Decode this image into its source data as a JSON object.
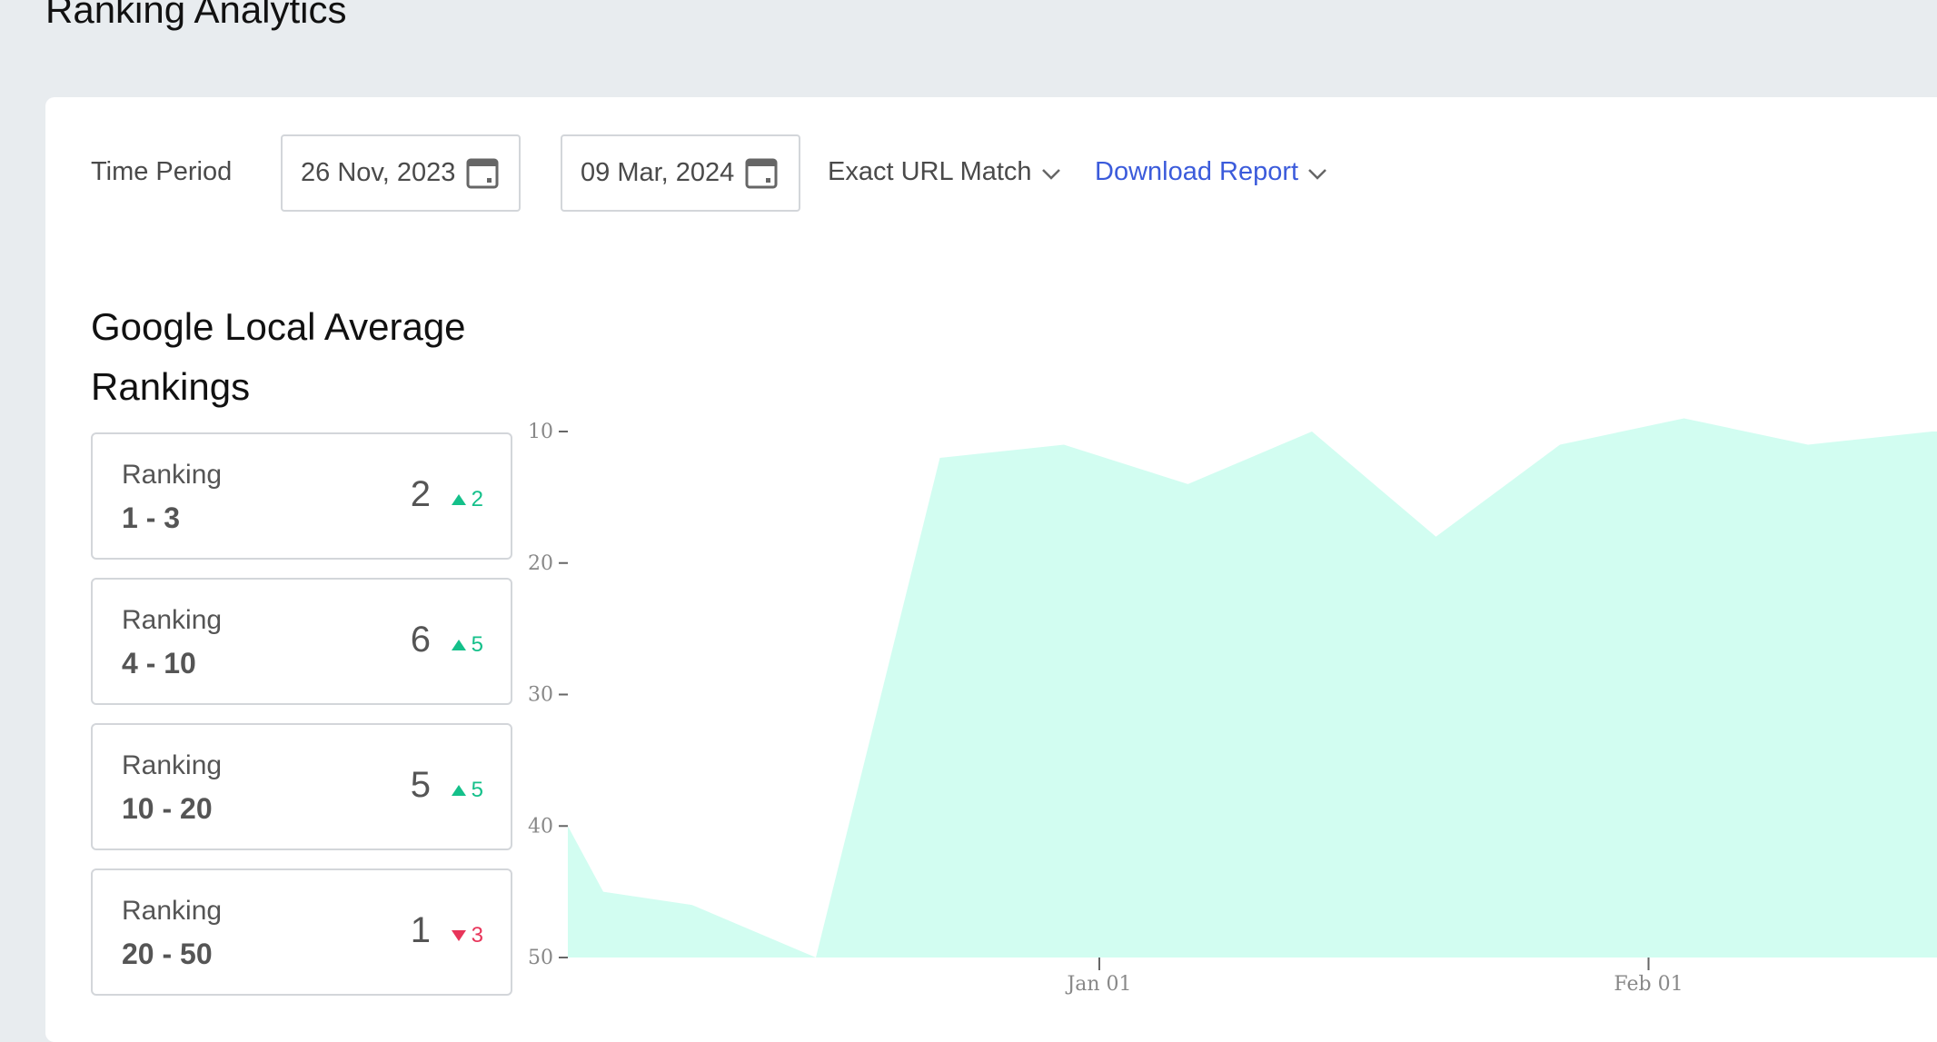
{
  "header": {
    "title": "Ranking Analytics"
  },
  "filters": {
    "time_period_label": "Time Period",
    "start_date": "26 Nov, 2023",
    "end_date": "09 Mar, 2024",
    "match_type": "Exact URL Match",
    "download_label": "Download Report"
  },
  "section": {
    "title": "Google Local Average Rankings"
  },
  "rankings": [
    {
      "label": "Ranking",
      "range": "1 - 3",
      "value": "2",
      "delta": "2",
      "direction": "up"
    },
    {
      "label": "Ranking",
      "range": "4 - 10",
      "value": "6",
      "delta": "5",
      "direction": "up"
    },
    {
      "label": "Ranking",
      "range": "10 - 20",
      "value": "5",
      "delta": "5",
      "direction": "up"
    },
    {
      "label": "Ranking",
      "range": "20 - 50",
      "value": "1",
      "delta": "3",
      "direction": "down"
    }
  ],
  "colors": {
    "accent_link": "#3b5bdb",
    "delta_up": "#14c08a",
    "delta_down": "#e8355a",
    "area_fill": "#d2fdf1"
  },
  "icons": {
    "date_picker": "calendar-icon",
    "dropdown": "chevron-down-icon",
    "delta_up": "triangle-up-icon",
    "delta_down": "triangle-down-icon"
  },
  "chart_data": {
    "type": "area",
    "title": "",
    "xlabel": "",
    "ylabel": "",
    "y_inverted": true,
    "ylim": [
      50,
      10
    ],
    "yticks": [
      "10",
      "20",
      "30",
      "40",
      "50"
    ],
    "xticks": [
      {
        "date": "2024-01-01",
        "label": "Jan 01"
      },
      {
        "date": "2024-02-01",
        "label": "Feb 01"
      }
    ],
    "grid": false,
    "legend": "none",
    "series": [
      {
        "x": [
          "2023-12-02",
          "2023-12-04",
          "2023-12-09",
          "2023-12-16",
          "2023-12-23",
          "2023-12-30",
          "2024-01-06",
          "2024-01-13",
          "2024-01-20",
          "2024-01-27",
          "2024-02-03",
          "2024-02-10",
          "2024-02-17"
        ],
        "y": [
          40,
          45,
          46,
          50,
          12,
          11,
          14,
          10,
          18,
          11,
          9,
          11,
          10
        ]
      }
    ]
  }
}
